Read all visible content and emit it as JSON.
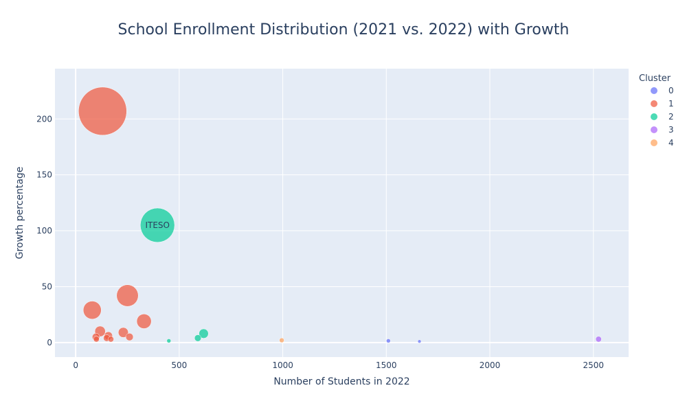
{
  "chart_data": {
    "type": "scatter",
    "title": "School Enrollment Distribution (2021 vs. 2022) with Growth",
    "xlabel": "Number of Students in 2022",
    "ylabel": "Growth percentage",
    "xlim": [
      -100,
      2670
    ],
    "ylim": [
      -13,
      245
    ],
    "x_ticks": [
      0,
      500,
      1000,
      1500,
      2000,
      2500
    ],
    "y_ticks": [
      0,
      50,
      100,
      150,
      200
    ],
    "grid": true,
    "plot_background": "#E5ECF6",
    "legend_title": "Cluster",
    "legend_position": "top-right",
    "clusters": [
      {
        "name": "0",
        "color": "#636EFA"
      },
      {
        "name": "1",
        "color": "#EF553B"
      },
      {
        "name": "2",
        "color": "#00CC96"
      },
      {
        "name": "3",
        "color": "#AB63FA"
      },
      {
        "name": "4",
        "color": "#FFA15A"
      }
    ],
    "points": [
      {
        "x": 130,
        "y": 207,
        "cluster": "1",
        "size": 207,
        "label": ""
      },
      {
        "x": 395,
        "y": 105,
        "cluster": "2",
        "size": 105,
        "label": "ITESO"
      },
      {
        "x": 250,
        "y": 42,
        "cluster": "1",
        "size": 42,
        "label": ""
      },
      {
        "x": 80,
        "y": 29,
        "cluster": "1",
        "size": 29,
        "label": ""
      },
      {
        "x": 330,
        "y": 19,
        "cluster": "1",
        "size": 19,
        "label": ""
      },
      {
        "x": 118,
        "y": 10,
        "cluster": "1",
        "size": 10,
        "label": ""
      },
      {
        "x": 230,
        "y": 9,
        "cluster": "1",
        "size": 9,
        "label": ""
      },
      {
        "x": 158,
        "y": 6,
        "cluster": "1",
        "size": 6,
        "label": ""
      },
      {
        "x": 98,
        "y": 5,
        "cluster": "1",
        "size": 5,
        "label": ""
      },
      {
        "x": 260,
        "y": 5,
        "cluster": "1",
        "size": 5,
        "label": ""
      },
      {
        "x": 150,
        "y": 4,
        "cluster": "1",
        "size": 4,
        "label": ""
      },
      {
        "x": 100,
        "y": 3,
        "cluster": "1",
        "size": 3,
        "label": ""
      },
      {
        "x": 170,
        "y": 3,
        "cluster": "1",
        "size": 3,
        "label": ""
      },
      {
        "x": 618,
        "y": 8,
        "cluster": "2",
        "size": 8,
        "label": ""
      },
      {
        "x": 590,
        "y": 4,
        "cluster": "2",
        "size": 4,
        "label": ""
      },
      {
        "x": 450,
        "y": 1.5,
        "cluster": "2",
        "size": 1.5,
        "label": ""
      },
      {
        "x": 1510,
        "y": 1.5,
        "cluster": "0",
        "size": 1.5,
        "label": ""
      },
      {
        "x": 1660,
        "y": 1,
        "cluster": "0",
        "size": 1,
        "label": ""
      },
      {
        "x": 2525,
        "y": 3,
        "cluster": "3",
        "size": 3,
        "label": ""
      },
      {
        "x": 995,
        "y": 2,
        "cluster": "4",
        "size": 2,
        "label": ""
      }
    ]
  }
}
